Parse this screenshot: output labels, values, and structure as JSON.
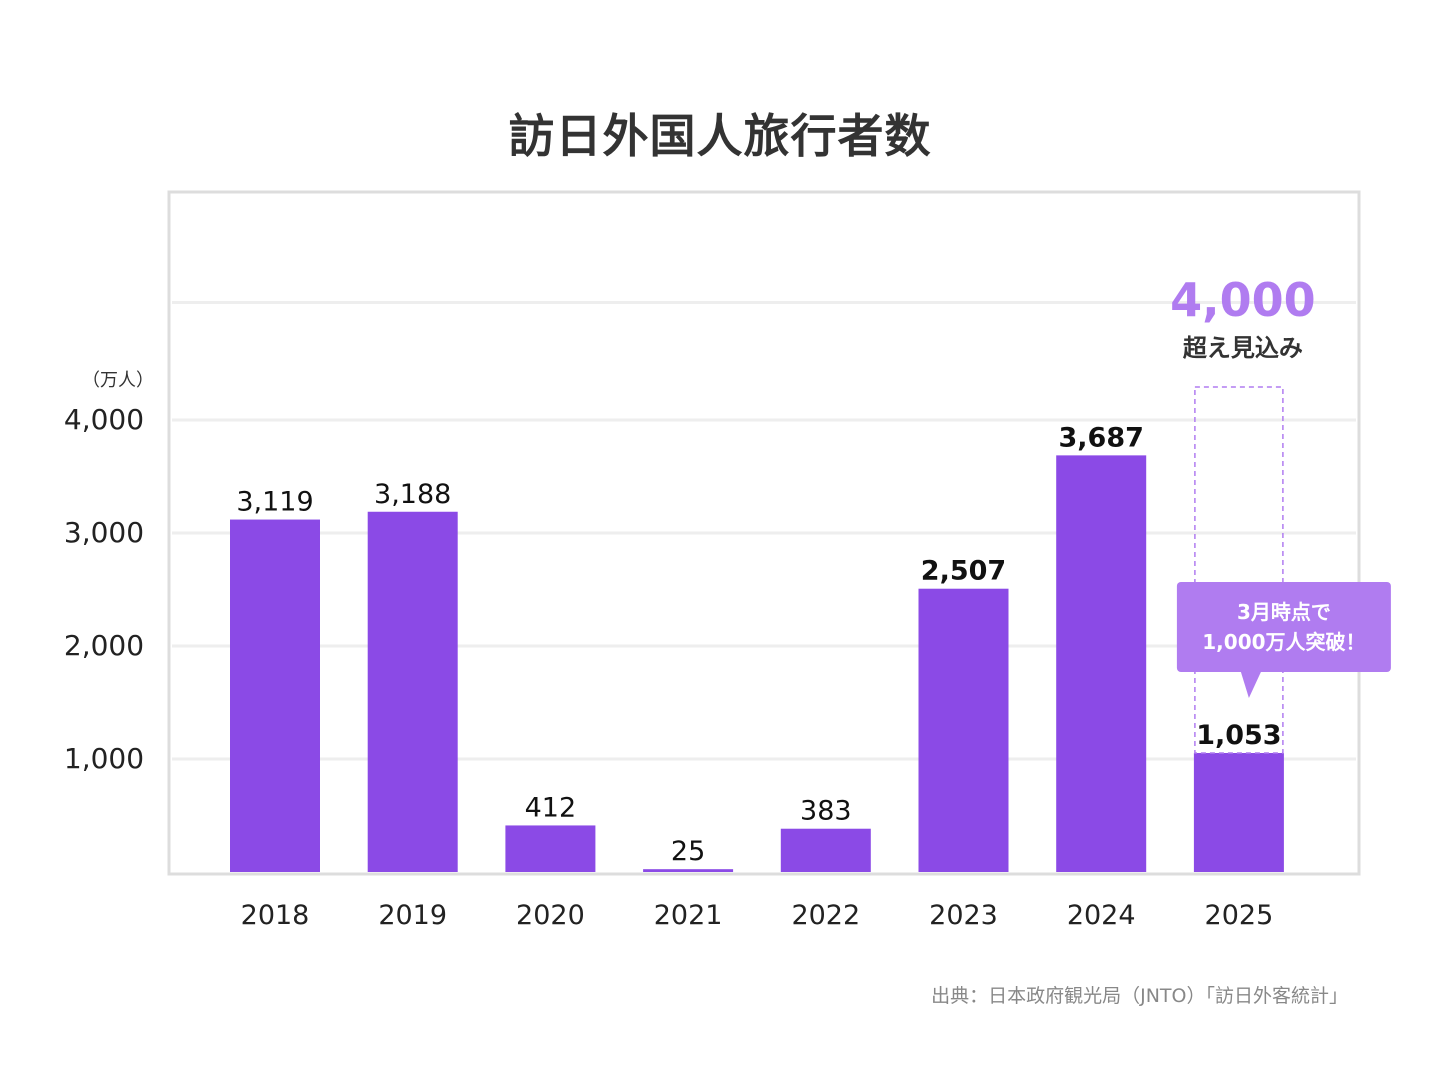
{
  "title": "訪日外国人旅行者数",
  "source": "出典：日本政府観光局（JNTO）「訪日外客統計」",
  "colors": {
    "bar": "#8b4ae6",
    "forecast": "#b07cf0",
    "callout": "#b07cf0",
    "grid": "#eeeeee",
    "frame": "#dddddd"
  },
  "chart_data": {
    "type": "bar",
    "categories": [
      "2018",
      "2019",
      "2020",
      "2021",
      "2022",
      "2023",
      "2024",
      "2025"
    ],
    "values": [
      3119,
      3188,
      412,
      25,
      383,
      2507,
      3687,
      1053
    ],
    "data_labels": [
      "3,119",
      "3,188",
      "412",
      "25",
      "383",
      "2,507",
      "3,687",
      "1,053"
    ],
    "bold_labels": [
      false,
      false,
      false,
      false,
      false,
      true,
      true,
      true
    ],
    "ylabel": "（万人）",
    "yticks": [
      1000,
      2000,
      3000,
      4000
    ],
    "ytick_labels": [
      "1,000",
      "2,000",
      "3,000",
      "4,000"
    ],
    "ylim": [
      0,
      5000
    ],
    "grid": true,
    "forecast": {
      "category": "2025",
      "value": 4000,
      "value_label": "4,000",
      "text": "超え見込み"
    },
    "callout": {
      "category": "2025",
      "lines": [
        "3月時点で",
        "1,000万人突破！"
      ]
    }
  }
}
